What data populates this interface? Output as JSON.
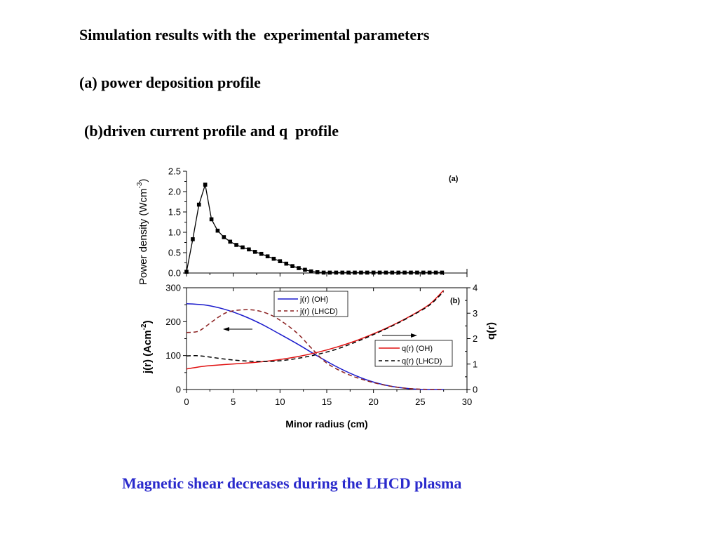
{
  "slide": {
    "heading_line1": "Simulation results with the  experimental parameters",
    "heading_line2": "(a) power deposition profile",
    "heading_line3": "(b)driven current profile and q  profile",
    "caption": "Magnetic shear decreases during the LHCD plasma",
    "caption_color": "#2a2acc"
  },
  "chart_data": [
    {
      "type": "line",
      "panel_label": "(a)",
      "ylabel": "Power density (Wcm",
      "ylabel_sup": "-3",
      "ylabel_close": ")",
      "xlim": [
        0,
        30
      ],
      "ylim": [
        0,
        2.5
      ],
      "yticks": [
        "0.0",
        "0.5",
        "1.0",
        "1.5",
        "2.0",
        "2.5"
      ],
      "marker": "square",
      "series": [
        {
          "name": "power density",
          "color": "#000000",
          "x": [
            0,
            0.67,
            1.33,
            2.0,
            2.67,
            3.33,
            4.0,
            4.67,
            5.33,
            6.0,
            6.67,
            7.33,
            8.0,
            8.67,
            9.33,
            10.0,
            10.67,
            11.33,
            12.0,
            12.67,
            13.33,
            14.0,
            14.67,
            15.33,
            16.0,
            16.67,
            17.33,
            18.0,
            18.67,
            19.33,
            20.0,
            20.67,
            21.33,
            22.0,
            22.67,
            23.33,
            24.0,
            24.67,
            25.33,
            26.0,
            26.67,
            27.33
          ],
          "y": [
            0.03,
            0.83,
            1.68,
            2.17,
            1.32,
            1.04,
            0.88,
            0.77,
            0.69,
            0.63,
            0.58,
            0.52,
            0.47,
            0.41,
            0.35,
            0.29,
            0.23,
            0.17,
            0.12,
            0.08,
            0.04,
            0.02,
            0.01,
            0.01,
            0.01,
            0.01,
            0.01,
            0.01,
            0.01,
            0.01,
            0.01,
            0.01,
            0.01,
            0.01,
            0.01,
            0.01,
            0.01,
            0.01,
            0.01,
            0.01,
            0.01,
            0.01
          ]
        }
      ]
    },
    {
      "type": "line",
      "panel_label": "(b)",
      "xlabel": "Minor radius (cm)",
      "ylabel": "j(r) (Acm",
      "ylabel_sup": "-2",
      "ylabel_close": ")",
      "y2label": "q(r)",
      "xlim": [
        0,
        30
      ],
      "ylim": [
        0,
        300
      ],
      "y2lim": [
        0,
        4
      ],
      "xticks": [
        "0",
        "5",
        "10",
        "15",
        "20",
        "25",
        "30"
      ],
      "yticks": [
        "0",
        "100",
        "200",
        "300"
      ],
      "y2ticks": [
        "0",
        "1",
        "2",
        "3",
        "4"
      ],
      "series": [
        {
          "name": "j(r) (OH)",
          "axis": "left",
          "color": "#1a1acc",
          "dash": false,
          "x": [
            0,
            2,
            4,
            6,
            8,
            10,
            12,
            14,
            16,
            18,
            20,
            22,
            24,
            25,
            26,
            27.5
          ],
          "y": [
            253,
            249,
            237,
            218,
            193,
            163,
            132,
            99,
            68,
            42,
            22,
            9,
            2,
            0.5,
            0,
            0
          ]
        },
        {
          "name": "j(r) (LHCD)",
          "axis": "left",
          "color": "#8b2020",
          "dash": true,
          "x": [
            0,
            1,
            1.5,
            2.5,
            3.5,
            4.5,
            6,
            7.5,
            9,
            10.5,
            12,
            13.5,
            15,
            17,
            19,
            21,
            23,
            25,
            27.5
          ],
          "y": [
            168,
            170,
            175,
            195,
            215,
            229,
            235,
            233,
            220,
            195,
            162,
            118,
            78,
            48,
            28,
            14,
            5,
            1,
            0
          ]
        },
        {
          "name": "q(r) (OH)",
          "axis": "right",
          "color": "#e01010",
          "dash": false,
          "x": [
            0,
            2,
            4,
            6,
            8,
            10,
            12,
            14,
            16,
            18,
            20,
            22,
            24,
            26,
            27.5
          ],
          "y": [
            0.81,
            0.92,
            0.98,
            1.03,
            1.09,
            1.18,
            1.3,
            1.46,
            1.66,
            1.9,
            2.19,
            2.52,
            2.9,
            3.35,
            3.9
          ]
        },
        {
          "name": "q(r) (LHCD)",
          "axis": "right",
          "color": "#000000",
          "dash": true,
          "x": [
            0,
            1,
            2,
            4,
            6,
            8,
            10,
            12,
            14,
            16,
            18,
            20,
            22,
            24,
            26,
            27.5
          ],
          "y": [
            1.32,
            1.33,
            1.3,
            1.2,
            1.13,
            1.1,
            1.13,
            1.23,
            1.38,
            1.58,
            1.85,
            2.16,
            2.5,
            2.88,
            3.32,
            3.85
          ]
        }
      ],
      "legend_left": [
        "j(r) (OH)",
        "j(r) (LHCD)"
      ],
      "legend_right": [
        "q(r) (OH)",
        "q(r) (LHCD)"
      ],
      "annotations": [
        "arrow pointing left (j axis)",
        "arrow pointing right (q axis)"
      ]
    }
  ]
}
